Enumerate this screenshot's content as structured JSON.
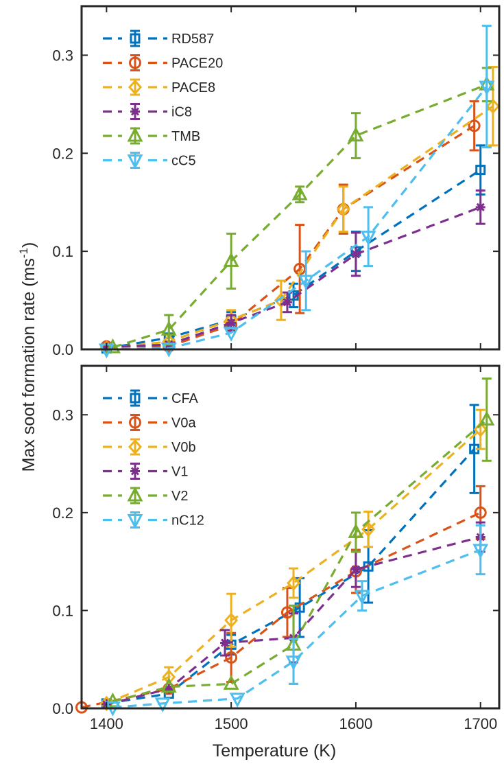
{
  "chart_data": [
    {
      "type": "line",
      "ylabel": "Max soot formation rate (ms",
      "ylabel_sup": "-1",
      "ylabel_end": ")",
      "xlabel": "",
      "xlim": [
        1380,
        1715
      ],
      "ylim": [
        0,
        0.35
      ],
      "yticks": [
        "0.0",
        "0.1",
        "0.2",
        "0.3"
      ],
      "xticks": [],
      "legend_position": "top-left",
      "grid": false,
      "series": [
        {
          "name": "RD587",
          "color": "#0072BD",
          "marker": "square",
          "points": [
            [
              1400,
              0.001
            ],
            [
              1450,
              0.012
            ],
            [
              1500,
              0.03
            ],
            [
              1550,
              0.055
            ],
            [
              1600,
              0.1
            ],
            [
              1700,
              0.183
            ]
          ],
          "err": [
            0,
            0,
            0.008,
            0.012,
            0.02,
            0.025
          ]
        },
        {
          "name": "PACE20",
          "color": "#D95319",
          "marker": "circle",
          "points": [
            [
              1400,
              0.003
            ],
            [
              1450,
              0.003
            ],
            [
              1500,
              0.025
            ],
            [
              1555,
              0.082
            ],
            [
              1590,
              0.143
            ],
            [
              1695,
              0.228
            ]
          ],
          "err": [
            0,
            0,
            0,
            0.045,
            0.025,
            0.025
          ]
        },
        {
          "name": "PACE8",
          "color": "#EDB120",
          "marker": "diamond",
          "points": [
            [
              1400,
              0.001
            ],
            [
              1450,
              0.008
            ],
            [
              1500,
              0.03
            ],
            [
              1540,
              0.05
            ],
            [
              1590,
              0.143
            ],
            [
              1710,
              0.248
            ]
          ],
          "err": [
            0,
            0,
            0.01,
            0.02,
            0.023,
            0.04
          ]
        },
        {
          "name": "iC8",
          "color": "#7E2F8E",
          "marker": "asterisk",
          "points": [
            [
              1400,
              0.002
            ],
            [
              1450,
              0.005
            ],
            [
              1500,
              0.027
            ],
            [
              1545,
              0.048
            ],
            [
              1600,
              0.097
            ],
            [
              1700,
              0.145
            ]
          ],
          "err": [
            0,
            0,
            0.008,
            0.01,
            0.022,
            0.017
          ]
        },
        {
          "name": "TMB",
          "color": "#77AC30",
          "marker": "triangle-up",
          "points": [
            [
              1405,
              0.002
            ],
            [
              1450,
              0.02
            ],
            [
              1500,
              0.09
            ],
            [
              1555,
              0.158
            ],
            [
              1600,
              0.218
            ],
            [
              1705,
              0.27
            ]
          ],
          "err": [
            0,
            0.015,
            0.028,
            0.008,
            0.023,
            0.017
          ]
        },
        {
          "name": "cC5",
          "color": "#4DBEEE",
          "marker": "triangle-down",
          "points": [
            [
              1400,
              0.0
            ],
            [
              1450,
              0.001
            ],
            [
              1500,
              0.017
            ],
            [
              1560,
              0.07
            ],
            [
              1610,
              0.115
            ],
            [
              1705,
              0.268
            ]
          ],
          "err": [
            0,
            0,
            0,
            0.03,
            0.03,
            0.062
          ]
        }
      ]
    },
    {
      "type": "line",
      "ylabel": "",
      "xlabel": "Temperature (K)",
      "xlim": [
        1380,
        1715
      ],
      "ylim": [
        0,
        0.35
      ],
      "yticks": [
        "0.0",
        "0.1",
        "0.2",
        "0.3"
      ],
      "xticks": [
        "1400",
        "1500",
        "1600",
        "1700"
      ],
      "legend_position": "top-left",
      "grid": false,
      "series": [
        {
          "name": "CFA",
          "color": "#0072BD",
          "marker": "square",
          "points": [
            [
              1400,
              0.005
            ],
            [
              1450,
              0.015
            ],
            [
              1500,
              0.065
            ],
            [
              1555,
              0.103
            ],
            [
              1610,
              0.145
            ],
            [
              1695,
              0.265
            ]
          ],
          "err": [
            0,
            0,
            0.01,
            0.03,
            0.037,
            0.045
          ]
        },
        {
          "name": "V0a",
          "color": "#D95319",
          "marker": "circle",
          "points": [
            [
              1380,
              0.001
            ],
            [
              1450,
              0.02
            ],
            [
              1500,
              0.052
            ],
            [
              1545,
              0.098
            ],
            [
              1600,
              0.14
            ],
            [
              1700,
              0.2
            ]
          ],
          "err": [
            0,
            0,
            0.025,
            0.025,
            0.022,
            0.027
          ]
        },
        {
          "name": "V0b",
          "color": "#EDB120",
          "marker": "diamond",
          "points": [
            [
              1400,
              0.005
            ],
            [
              1450,
              0.032
            ],
            [
              1500,
              0.09
            ],
            [
              1550,
              0.128
            ],
            [
              1610,
              0.183
            ],
            [
              1700,
              0.285
            ]
          ],
          "err": [
            0,
            0.01,
            0.027,
            0.015,
            0.018,
            0.02
          ]
        },
        {
          "name": "V1",
          "color": "#7E2F8E",
          "marker": "asterisk",
          "points": [
            [
              1400,
              0.004
            ],
            [
              1450,
              0.02
            ],
            [
              1495,
              0.067
            ],
            [
              1550,
              0.072
            ],
            [
              1600,
              0.142
            ],
            [
              1700,
              0.175
            ]
          ],
          "err": [
            0,
            0,
            0.013,
            0.025,
            0.018,
            0.015
          ]
        },
        {
          "name": "V2",
          "color": "#77AC30",
          "marker": "triangle-up",
          "points": [
            [
              1405,
              0.007
            ],
            [
              1450,
              0.022
            ],
            [
              1500,
              0.025
            ],
            [
              1550,
              0.065
            ],
            [
              1600,
              0.18
            ],
            [
              1705,
              0.295
            ]
          ],
          "err": [
            0,
            0,
            0,
            0.04,
            0.02,
            0.042
          ]
        },
        {
          "name": "nC12",
          "color": "#4DBEEE",
          "marker": "triangle-down",
          "points": [
            [
              1405,
              0.001
            ],
            [
              1445,
              0.005
            ],
            [
              1505,
              0.01
            ],
            [
              1550,
              0.048
            ],
            [
              1605,
              0.115
            ],
            [
              1700,
              0.162
            ]
          ],
          "err": [
            0,
            0,
            0,
            0.023,
            0.015,
            0.025
          ]
        }
      ]
    }
  ]
}
